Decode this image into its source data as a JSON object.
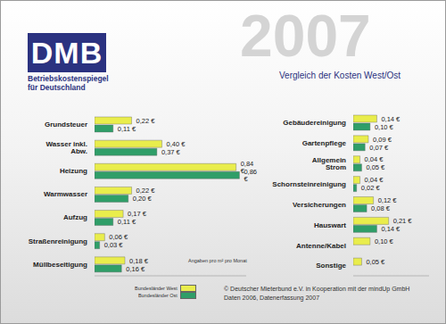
{
  "header": {
    "logo": "DMB",
    "logo_subtitle": [
      "Betriebskostenspiegel",
      "für Deutschland"
    ],
    "year": "2007",
    "title": "Vergleich der Kosten West/Ost"
  },
  "note": "Angaben pro m² pro Monat",
  "footer": [
    "© Deutscher Mieterbund e.V. in Kooperation mit der mindUp GmbH",
    "Daten 2006, Datenerfassung 2007"
  ],
  "chart_data": [
    {
      "type": "bar",
      "orientation": "horizontal",
      "categories": [
        "Grundsteuer",
        "Wasser inkl. Abw.",
        "Heizung",
        "Warmwasser",
        "Aufzug",
        "Straßenreinigung",
        "Müllbeseitigung"
      ],
      "series": [
        {
          "name": "Bundesländer West",
          "color": "#e9ed4c",
          "values": [
            0.22,
            0.4,
            0.84,
            0.22,
            0.17,
            0.06,
            0.18
          ],
          "value_labels": [
            "0,22 €",
            "0,40 €",
            "0,84 €",
            "0,22 €",
            "0,17 €",
            "0,06 €",
            "0,18 €"
          ]
        },
        {
          "name": "Bundesländer Ost",
          "color": "#2f9e68",
          "values": [
            0.11,
            0.37,
            0.86,
            0.2,
            0.11,
            0.03,
            0.16
          ],
          "value_labels": [
            "0,11 €",
            "0,37 €",
            "0,86 €",
            "0,20 €",
            "0,11 €",
            "0,03 €",
            "0,16 €"
          ]
        }
      ],
      "xlim": [
        0,
        0.9
      ],
      "data_labels": true,
      "tick_labels": "y",
      "legend": "bottom"
    },
    {
      "type": "bar",
      "orientation": "horizontal",
      "categories": [
        "Gebäudereinigung",
        "Gartenpflege",
        "Allgemein Strom",
        "Schornsteinreinigung",
        "Versicherungen",
        "Hauswart",
        "Antenne/Kabel",
        "Sonstige"
      ],
      "series": [
        {
          "name": "Bundesländer West",
          "color": "#e9ed4c",
          "values": [
            0.14,
            0.09,
            0.04,
            0.04,
            0.12,
            0.21,
            0.1,
            0.05
          ],
          "value_labels": [
            "0,14 €",
            "0,09 €",
            "0,04 €",
            "0,04 €",
            "0,12 €",
            "0,21 €",
            "0,10 €",
            "0,05 €"
          ]
        },
        {
          "name": "Bundesländer Ost",
          "color": "#2f9e68",
          "values": [
            0.1,
            0.07,
            0.05,
            0.02,
            0.08,
            0.14,
            null,
            null
          ],
          "value_labels": [
            "0,10 €",
            "0,07 €",
            "0,05 €",
            "0,02 €",
            "0,08 €",
            "0,14 €",
            null,
            null
          ]
        }
      ],
      "xlim": [
        0,
        0.45
      ],
      "data_labels": true,
      "tick_labels": "y"
    }
  ]
}
